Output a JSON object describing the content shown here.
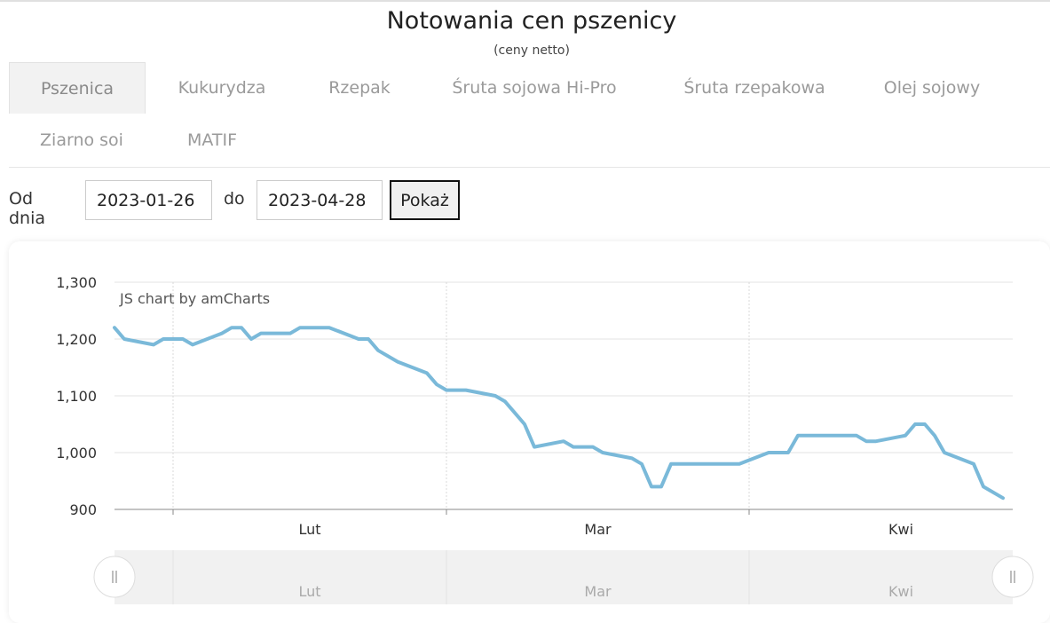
{
  "page": {
    "title": "Notowania cen pszenicy",
    "subtitle": "(ceny netto)"
  },
  "tabs": [
    {
      "label": "Pszenica",
      "active": true
    },
    {
      "label": "Kukurydza",
      "active": false
    },
    {
      "label": "Rzepak",
      "active": false
    },
    {
      "label": "Śruta sojowa Hi-Pro",
      "active": false
    },
    {
      "label": "Śruta rzepakowa",
      "active": false
    },
    {
      "label": "Olej sojowy",
      "active": false
    },
    {
      "label": "Ziarno soi",
      "active": false
    },
    {
      "label": "MATIF",
      "active": false
    }
  ],
  "filter": {
    "from_label": "Od dnia",
    "from_value": "2023-01-26",
    "to_label": "do",
    "to_value": "2023-04-28",
    "submit_label": "Pokaż"
  },
  "chart_data": {
    "type": "line",
    "credit": "JS chart by amCharts",
    "ylim": [
      900,
      1300
    ],
    "yticks": [
      "1,300",
      "1,200",
      "1,100",
      "1,000",
      "900"
    ],
    "xlim": [
      "2023-01-26",
      "2023-04-28"
    ],
    "xticks": [
      {
        "date": "2023-02-01",
        "label": "Lut"
      },
      {
        "date": "2023-03-01",
        "label": "Mar"
      },
      {
        "date": "2023-04-01",
        "label": "Kwi"
      }
    ],
    "series": [
      {
        "color": "#7ab9d9",
        "points": [
          [
            "2023-01-26",
            1220
          ],
          [
            "2023-01-27",
            1200
          ],
          [
            "2023-01-30",
            1190
          ],
          [
            "2023-01-31",
            1200
          ],
          [
            "2023-02-02",
            1200
          ],
          [
            "2023-02-03",
            1190
          ],
          [
            "2023-02-06",
            1210
          ],
          [
            "2023-02-07",
            1220
          ],
          [
            "2023-02-08",
            1220
          ],
          [
            "2023-02-09",
            1200
          ],
          [
            "2023-02-10",
            1210
          ],
          [
            "2023-02-13",
            1210
          ],
          [
            "2023-02-14",
            1220
          ],
          [
            "2023-02-17",
            1220
          ],
          [
            "2023-02-20",
            1200
          ],
          [
            "2023-02-21",
            1200
          ],
          [
            "2023-02-22",
            1180
          ],
          [
            "2023-02-24",
            1160
          ],
          [
            "2023-02-27",
            1140
          ],
          [
            "2023-02-28",
            1120
          ],
          [
            "2023-03-01",
            1110
          ],
          [
            "2023-03-03",
            1110
          ],
          [
            "2023-03-06",
            1100
          ],
          [
            "2023-03-07",
            1090
          ],
          [
            "2023-03-08",
            1070
          ],
          [
            "2023-03-09",
            1050
          ],
          [
            "2023-03-10",
            1010
          ],
          [
            "2023-03-13",
            1020
          ],
          [
            "2023-03-14",
            1010
          ],
          [
            "2023-03-16",
            1010
          ],
          [
            "2023-03-17",
            1000
          ],
          [
            "2023-03-20",
            990
          ],
          [
            "2023-03-21",
            980
          ],
          [
            "2023-03-22",
            940
          ],
          [
            "2023-03-23",
            940
          ],
          [
            "2023-03-24",
            980
          ],
          [
            "2023-03-31",
            980
          ],
          [
            "2023-04-03",
            1000
          ],
          [
            "2023-04-05",
            1000
          ],
          [
            "2023-04-06",
            1030
          ],
          [
            "2023-04-12",
            1030
          ],
          [
            "2023-04-13",
            1020
          ],
          [
            "2023-04-14",
            1020
          ],
          [
            "2023-04-17",
            1030
          ],
          [
            "2023-04-18",
            1050
          ],
          [
            "2023-04-19",
            1050
          ],
          [
            "2023-04-20",
            1030
          ],
          [
            "2023-04-21",
            1000
          ],
          [
            "2023-04-24",
            980
          ],
          [
            "2023-04-25",
            940
          ],
          [
            "2023-04-27",
            920
          ]
        ]
      }
    ],
    "grid": true,
    "scrollbar": {
      "labels": [
        "Lut",
        "Mar",
        "Kwi"
      ],
      "handle_icon": "grip-icon"
    }
  }
}
